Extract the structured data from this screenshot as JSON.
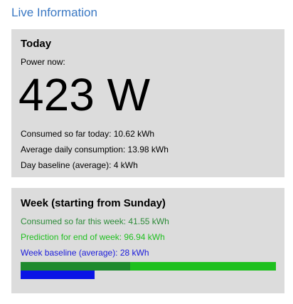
{
  "page": {
    "heading": "Live Information"
  },
  "today": {
    "title": "Today",
    "power_label": "Power now:",
    "power_value": "423 W",
    "consumed_text": "Consumed so far today: 10.62 kWh",
    "average_text": "Average daily consumption: 13.98 kWh",
    "baseline_text": "Day baseline (average): 4 kWh"
  },
  "week": {
    "title": "Week (starting from Sunday)",
    "consumed_text": "Consumed so far this week: 41.55 kWh",
    "prediction_text": "Prediction for end of week: 96.94 kWh",
    "baseline_text": "Week baseline (average): 28 kWh",
    "consumed_kwh": 41.55,
    "prediction_kwh": 96.94,
    "baseline_kwh": 28
  },
  "colors": {
    "heading": "#3a78c3",
    "consumed_text": "#2e8b3a",
    "prediction_text": "#22c022",
    "baseline_text": "#1a1adb",
    "bar_consumed": "#1e8a2e",
    "bar_prediction": "#1ec01e",
    "bar_baseline": "#0a14e6"
  }
}
